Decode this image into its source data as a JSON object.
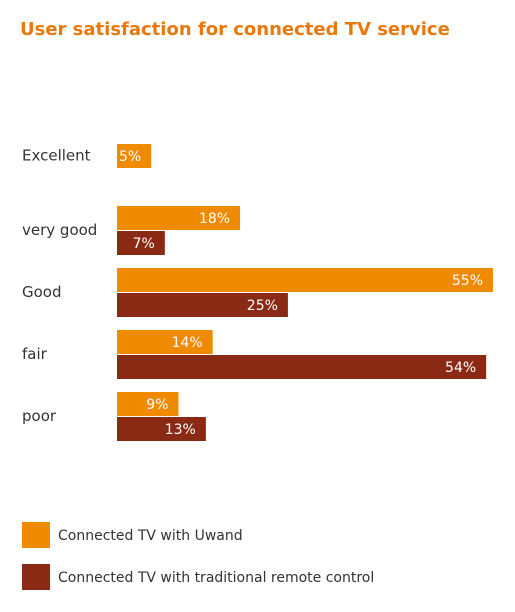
{
  "chart_data": {
    "type": "hbar",
    "title": "User satisfaction for connected TV service",
    "categories": [
      "Excellent",
      "very good",
      "Good",
      "fair",
      "poor"
    ],
    "series": [
      {
        "name": "Connected TV with Uwand",
        "color": "#f08a00",
        "values": [
          5,
          18,
          55,
          14,
          9
        ],
        "value_labels": [
          "5%",
          "18%",
          "55%",
          "14%",
          "9%"
        ]
      },
      {
        "name": "Connected TV with traditional remote control",
        "color": "#8b2a14",
        "values": [
          null,
          7,
          25,
          54,
          13
        ],
        "value_labels": [
          null,
          "7%",
          "25%",
          "54%",
          "13%"
        ]
      }
    ]
  }
}
